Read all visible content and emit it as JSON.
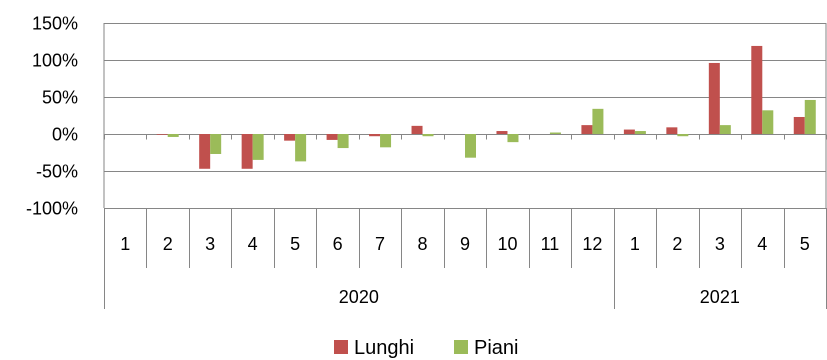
{
  "chart_data": {
    "type": "bar",
    "title": "",
    "xlabel": "",
    "ylabel": "",
    "ylim": [
      -100,
      150
    ],
    "yticks": [
      -100,
      -50,
      0,
      50,
      100,
      150
    ],
    "ytick_labels": [
      "-100%",
      "-50%",
      "0%",
      "50%",
      "100%",
      "150%"
    ],
    "grid": true,
    "legend": "bottom",
    "categories": [
      "1",
      "2",
      "3",
      "4",
      "5",
      "6",
      "7",
      "8",
      "9",
      "10",
      "11",
      "12",
      "1",
      "2",
      "3",
      "4",
      "5"
    ],
    "year_groups": [
      {
        "label": "2020",
        "count": 12
      },
      {
        "label": "2021",
        "count": 5
      }
    ],
    "series": [
      {
        "name": "Lunghi",
        "color": "#C0504D",
        "values": [
          0,
          -1,
          -47,
          -47,
          -9,
          -8,
          -3,
          11,
          0,
          4,
          0,
          12,
          6,
          9,
          96,
          119,
          23
        ]
      },
      {
        "name": "Piani",
        "color": "#9BBB59",
        "values": [
          0,
          -4,
          -27,
          -35,
          -37,
          -19,
          -18,
          -3,
          -32,
          -11,
          2,
          34,
          4,
          -3,
          12,
          32,
          46
        ]
      }
    ]
  }
}
